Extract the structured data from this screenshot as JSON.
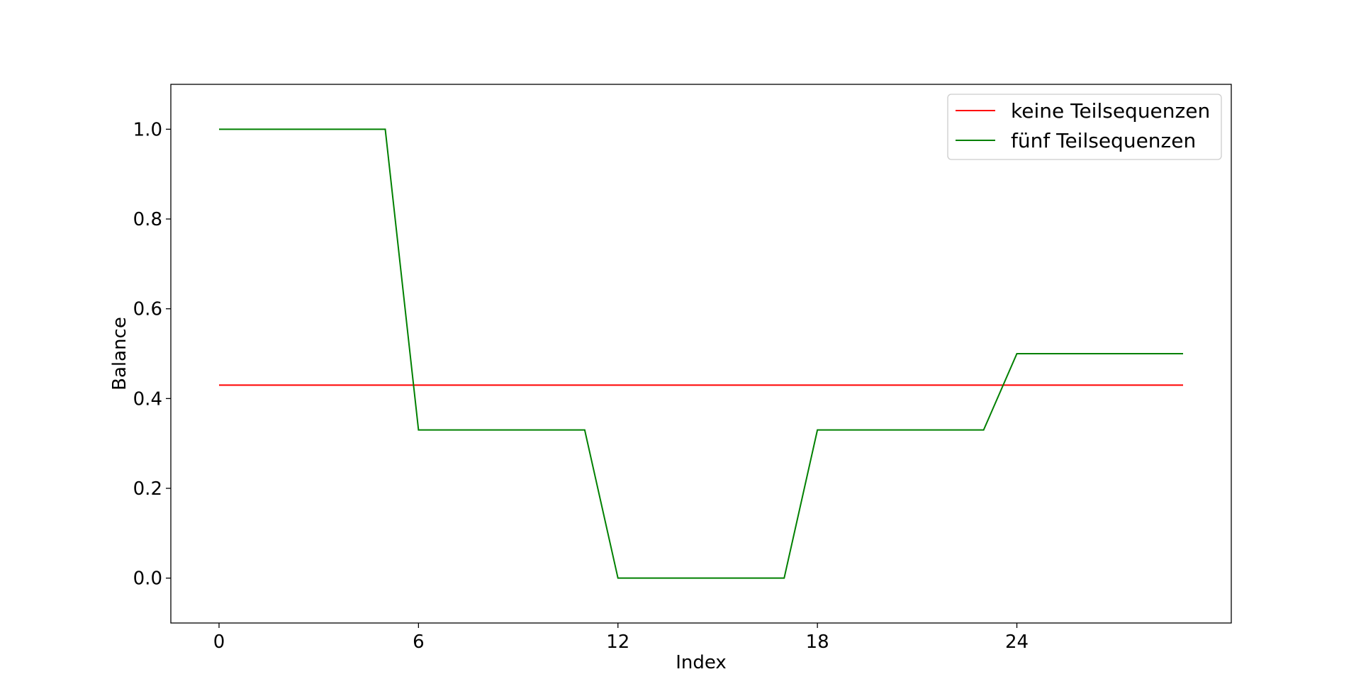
{
  "chart_data": {
    "type": "line",
    "title": "",
    "xlabel": "Index",
    "ylabel": "Balance",
    "xlim": [
      -1.45,
      30.45
    ],
    "ylim": [
      -0.1,
      1.1
    ],
    "xticks": [
      0,
      6,
      12,
      18,
      24
    ],
    "xtick_labels": [
      "0",
      "6",
      "12",
      "18",
      "24"
    ],
    "yticks": [
      0.0,
      0.2,
      0.4,
      0.6,
      0.8,
      1.0
    ],
    "ytick_labels": [
      "0.0",
      "0.2",
      "0.4",
      "0.6",
      "0.8",
      "1.0"
    ],
    "grid": false,
    "legend_position": "top-right",
    "x": [
      0,
      1,
      2,
      3,
      4,
      5,
      6,
      7,
      8,
      9,
      10,
      11,
      12,
      13,
      14,
      15,
      16,
      17,
      18,
      19,
      20,
      21,
      22,
      23,
      24,
      25,
      26,
      27,
      28,
      29
    ],
    "series": [
      {
        "name": "keine Teilsequenzen",
        "color": "#ff0000",
        "values": [
          0.43,
          0.43,
          0.43,
          0.43,
          0.43,
          0.43,
          0.43,
          0.43,
          0.43,
          0.43,
          0.43,
          0.43,
          0.43,
          0.43,
          0.43,
          0.43,
          0.43,
          0.43,
          0.43,
          0.43,
          0.43,
          0.43,
          0.43,
          0.43,
          0.43,
          0.43,
          0.43,
          0.43,
          0.43,
          0.43
        ]
      },
      {
        "name": "fünf Teilsequenzen",
        "color": "#008000",
        "values": [
          1.0,
          1.0,
          1.0,
          1.0,
          1.0,
          1.0,
          0.33,
          0.33,
          0.33,
          0.33,
          0.33,
          0.33,
          0.0,
          0.0,
          0.0,
          0.0,
          0.0,
          0.0,
          0.33,
          0.33,
          0.33,
          0.33,
          0.33,
          0.33,
          0.5,
          0.5,
          0.5,
          0.5,
          0.5,
          0.5
        ]
      }
    ]
  }
}
